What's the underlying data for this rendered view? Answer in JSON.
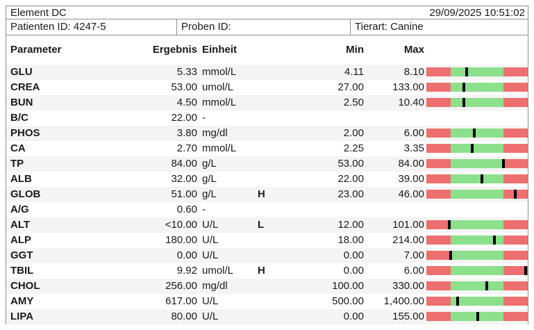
{
  "header": {
    "title": "Element DC",
    "datetime": "29/09/2025 10:51:02",
    "patient_id": "Patienten ID: 4247-5",
    "proben_id": "Proben ID:",
    "tierart": "Tierart: Canine"
  },
  "columns": {
    "parameter": "Parameter",
    "ergebnis": "Ergebnis",
    "einheit": "Einheit",
    "min": "Min",
    "max": "Max"
  },
  "colors": {
    "range_red": "#ee6f6f",
    "range_green": "#8ce08c",
    "marker_black": "#000000",
    "row_alt_gray": "#f4f4f4",
    "border_gray": "#8f8f8f"
  },
  "rows": [
    {
      "parameter": "GLU",
      "result": "5.33",
      "unit": "mmol/L",
      "flag": "",
      "min": "4.11",
      "max": "8.10"
    },
    {
      "parameter": "CREA",
      "result": "53.00",
      "unit": "umol/L",
      "flag": "",
      "min": "27.00",
      "max": "133.00"
    },
    {
      "parameter": "BUN",
      "result": "4.50",
      "unit": "mmol/L",
      "flag": "",
      "min": "2.50",
      "max": "10.40"
    },
    {
      "parameter": "B/C",
      "result": "22.00",
      "unit": "-",
      "flag": "",
      "min": "",
      "max": ""
    },
    {
      "parameter": "PHOS",
      "result": "3.80",
      "unit": "mg/dl",
      "flag": "",
      "min": "2.00",
      "max": "6.00"
    },
    {
      "parameter": "CA",
      "result": "2.70",
      "unit": "mmol/L",
      "flag": "",
      "min": "2.25",
      "max": "3.35"
    },
    {
      "parameter": "TP",
      "result": "84.00",
      "unit": "g/L",
      "flag": "",
      "min": "53.00",
      "max": "84.00"
    },
    {
      "parameter": "ALB",
      "result": "32.00",
      "unit": "g/L",
      "flag": "",
      "min": "22.00",
      "max": "39.00"
    },
    {
      "parameter": "GLOB",
      "result": "51.00",
      "unit": "g/L",
      "flag": "H",
      "min": "23.00",
      "max": "46.00"
    },
    {
      "parameter": "A/G",
      "result": "0.60",
      "unit": "-",
      "flag": "",
      "min": "",
      "max": ""
    },
    {
      "parameter": "ALT",
      "result": "<10.00",
      "unit": "U/L",
      "flag": "L",
      "min": "12.00",
      "max": "101.00"
    },
    {
      "parameter": "ALP",
      "result": "180.00",
      "unit": "U/L",
      "flag": "",
      "min": "18.00",
      "max": "214.00"
    },
    {
      "parameter": "GGT",
      "result": "0.00",
      "unit": "U/L",
      "flag": "",
      "min": "0.00",
      "max": "7.00"
    },
    {
      "parameter": "TBIL",
      "result": "9.92",
      "unit": "umol/L",
      "flag": "H",
      "min": "0.00",
      "max": "6.00"
    },
    {
      "parameter": "CHOL",
      "result": "256.00",
      "unit": "mg/dl",
      "flag": "",
      "min": "100.00",
      "max": "330.00"
    },
    {
      "parameter": "AMY",
      "result": "617.00",
      "unit": "U/L",
      "flag": "",
      "min": "500.00",
      "max": "1,400.00"
    },
    {
      "parameter": "LIPA",
      "result": "80.00",
      "unit": "U/L",
      "flag": "",
      "min": "0.00",
      "max": "155.00"
    }
  ]
}
